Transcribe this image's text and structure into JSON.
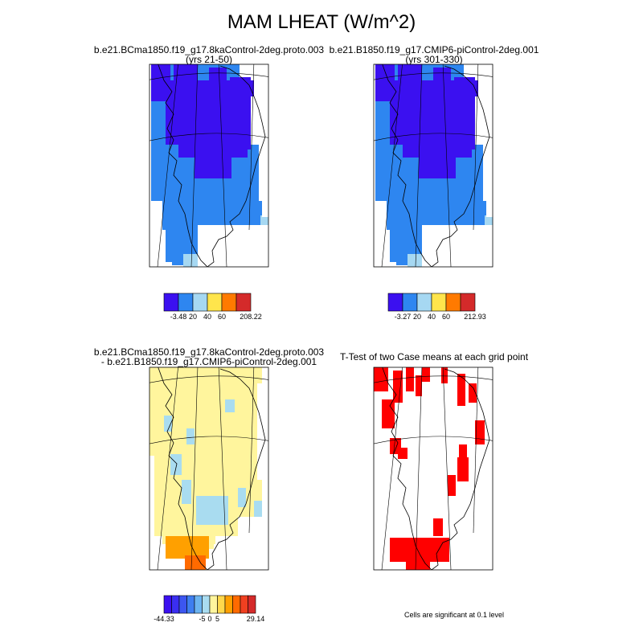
{
  "page_title": "MAM LHEAT (W/m^2)",
  "panels": [
    {
      "title_lines": [
        "b.e21.BCma1850.f19_g17.8kaControl-2deg.proto.003",
        "(yrs 21-50)"
      ]
    },
    {
      "title_lines": [
        "b.e21.B1850.f19_g17.CMIP6-piControl-2deg.001",
        "(yrs 301-330)"
      ]
    },
    {
      "title_lines": [
        "b.e21.BCma1850.f19_g17.8kaControl-2deg.proto.003",
        " - b.e21.B1850.f19_g17.CMIP6-piControl-2deg.001"
      ]
    },
    {
      "title_lines": [
        "T-Test of two Case means at each grid point"
      ]
    }
  ],
  "significance_note": "Cells are significant at 0.1 level",
  "colors": {
    "c1": "#3b10f0",
    "c2": "#2e86f0",
    "c3": "#a6d8f2",
    "c4": "#ffe54c",
    "c5": "#ff7a00",
    "c6": "#d42a2a",
    "diff_yellow": "#fff59d",
    "diff_blue": "#a9dcf0",
    "diff_orange": "#ffa000",
    "diff_dorange": "#ff6a00",
    "sig_red": "#ff0000"
  },
  "chart_data": [
    {
      "type": "heatmap",
      "title": "b.e21.BCma1850.f19_g17.8kaControl-2deg.proto.003 (yrs 21-50)",
      "colorbar": {
        "colors": [
          "#3b10f0",
          "#2e86f0",
          "#a6d8f2",
          "#ffe54c",
          "#ff7a00",
          "#d42a2a"
        ],
        "tick_labels": [
          "-3.48",
          "20",
          "40",
          "60",
          "208.22"
        ]
      }
    },
    {
      "type": "heatmap",
      "title": "b.e21.B1850.f19_g17.CMIP6-piControl-2deg.001 (yrs 301-330)",
      "colorbar": {
        "colors": [
          "#3b10f0",
          "#2e86f0",
          "#a6d8f2",
          "#ffe54c",
          "#ff7a00",
          "#d42a2a"
        ],
        "tick_labels": [
          "-3.27",
          "20",
          "40",
          "60",
          "212.93"
        ]
      }
    },
    {
      "type": "heatmap",
      "title": "b.e21.BCma1850.f19_g17.8kaControl-2deg.proto.003 - b.e21.B1850.f19_g17.CMIP6-piControl-2deg.001",
      "colorbar": {
        "colors": [
          "#3b10f0",
          "#3a2ef0",
          "#3c56f0",
          "#3e7ef0",
          "#6cb4f0",
          "#a9dcf0",
          "#fff59d",
          "#ffd84c",
          "#ffa000",
          "#ff6a00",
          "#f04020",
          "#d42a2a"
        ],
        "tick_labels": [
          "-44.33",
          "-5",
          "0",
          "5",
          "29.14"
        ]
      }
    },
    {
      "type": "heatmap",
      "title": "T-Test of two Case means at each grid point"
    }
  ]
}
